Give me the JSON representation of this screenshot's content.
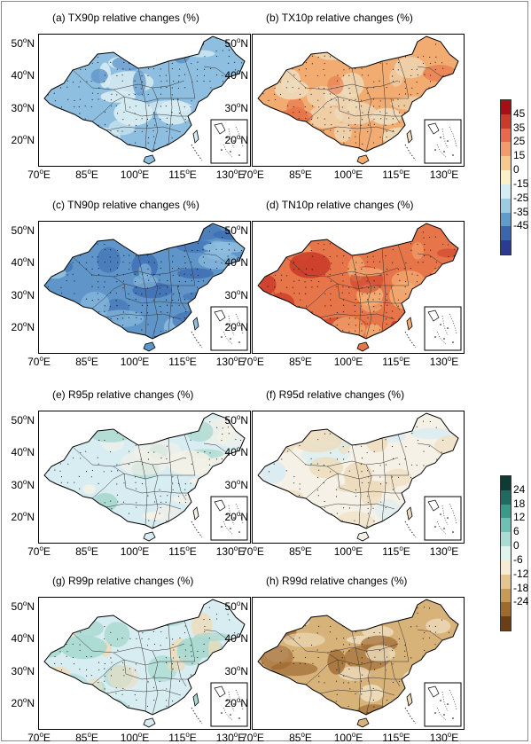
{
  "panels": [
    {
      "title": "(a) TX90p relative changes (%)",
      "scheme": "cool",
      "tone": "mid"
    },
    {
      "title": "(b) TX10p relative changes (%)",
      "scheme": "warm",
      "tone": "mid"
    },
    {
      "title": "(c) TN90p relative changes (%)",
      "scheme": "cool",
      "tone": "strong"
    },
    {
      "title": "(d) TN10p relative changes (%)",
      "scheme": "warm",
      "tone": "strong"
    },
    {
      "title": "(e) R95p relative changes (%)",
      "scheme": "wetlight",
      "tone": "light"
    },
    {
      "title": "(f) R95d relative changes (%)",
      "scheme": "drylight",
      "tone": "light"
    },
    {
      "title": "(g) R99p relative changes (%)",
      "scheme": "wetmix",
      "tone": "mid"
    },
    {
      "title": "(h) R99d relative changes (%)",
      "scheme": "drymix",
      "tone": "mid"
    }
  ],
  "axes": {
    "lat_ticks": [
      "50",
      "40",
      "30",
      "20"
    ],
    "lat_suffix": "N",
    "lon_ticks": [
      "70",
      "85",
      "100",
      "115",
      "130"
    ],
    "lon_suffix": "E",
    "degree_symbol": "o"
  },
  "colorbars": [
    {
      "labels": [
        "45",
        "35",
        "25",
        "15",
        "0",
        "-15",
        "-25",
        "-35",
        "-45"
      ],
      "colors": [
        "#a50f15",
        "#cb3b2a",
        "#e86a4a",
        "#f39b6a",
        "#f7c98c",
        "#fbf0c8",
        "#d6ecf4",
        "#9ccbe2",
        "#5e9dcb",
        "#3a66b0",
        "#2b3a94"
      ]
    },
    {
      "labels": [
        "24",
        "18",
        "12",
        "6",
        "0",
        "-6",
        "-12",
        "-18",
        "-24"
      ],
      "colors": [
        "#0e3b33",
        "#1f6b5f",
        "#3a9a8a",
        "#6cc1b3",
        "#a9ddd4",
        "#dff3ef",
        "#f6ecd6",
        "#e3c58f",
        "#c99956",
        "#9f6a2c",
        "#6b3f12"
      ]
    }
  ],
  "palettes": {
    "cool_mid": "#8fbfe0",
    "cool_strong": "#5f95c9",
    "cool_dark": "#3f6fb3",
    "warm_mid": "#f2ac72",
    "warm_strong": "#e7754a",
    "warm_dark": "#cc3e2a",
    "wet_light": "#d8edf2",
    "wet_mid": "#a9d9d0",
    "wet_dark": "#5fb3a5",
    "dry_light": "#eddcbc",
    "dry_mid": "#d7b37a",
    "dry_dark": "#9d6630",
    "neutral": "#f6f1e6"
  }
}
